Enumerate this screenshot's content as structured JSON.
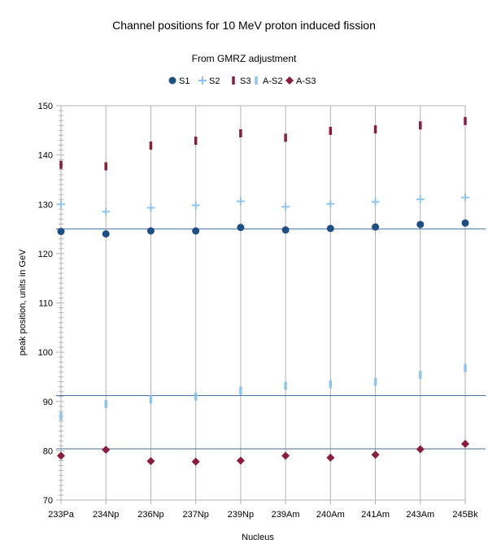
{
  "chart_data": {
    "type": "scatter",
    "title": "Channel positions for 10 MeV proton induced fission",
    "subtitle": "From GMRZ adjustment",
    "xlabel": "Nucleus",
    "ylabel": "peak position, units in GeV",
    "ylim": [
      70,
      150
    ],
    "ytick_step": 10,
    "categories": [
      "233Pa",
      "234Np",
      "236Np",
      "237Np",
      "239Np",
      "239Am",
      "240Am",
      "241Am",
      "243Am",
      "245Bk"
    ],
    "grid": "vertical-only",
    "legend_position": "top",
    "reference_lines": [
      125,
      91.2,
      80.4
    ],
    "reference_line_color": "#4a6fa5",
    "series": [
      {
        "name": "S1",
        "marker": "circle",
        "color": "#1c4f86",
        "values": [
          124.5,
          124.0,
          124.6,
          124.6,
          125.3,
          124.8,
          125.1,
          125.4,
          125.9,
          126.2
        ]
      },
      {
        "name": "S2",
        "marker": "plus",
        "color": "#8ec5ed",
        "values": [
          130.0,
          128.5,
          129.3,
          129.8,
          130.6,
          129.5,
          130.1,
          130.5,
          131.0,
          131.4
        ]
      },
      {
        "name": "S3",
        "marker": "vbar",
        "color": "#8a1c3c",
        "values": [
          138.0,
          137.7,
          141.9,
          142.9,
          144.4,
          143.5,
          144.9,
          145.2,
          146.0,
          146.9
        ]
      },
      {
        "name": "A-S2",
        "marker": "vbar",
        "color": "#8ec5ed",
        "values": [
          87.0,
          89.5,
          90.4,
          91.0,
          92.2,
          93.2,
          93.5,
          94.0,
          95.4,
          96.8
        ]
      },
      {
        "name": "A-S3",
        "marker": "diamond",
        "color": "#8a1c3c",
        "values": [
          79.0,
          80.2,
          77.9,
          77.8,
          78.0,
          79.0,
          78.6,
          79.2,
          80.3,
          81.4
        ]
      }
    ]
  }
}
